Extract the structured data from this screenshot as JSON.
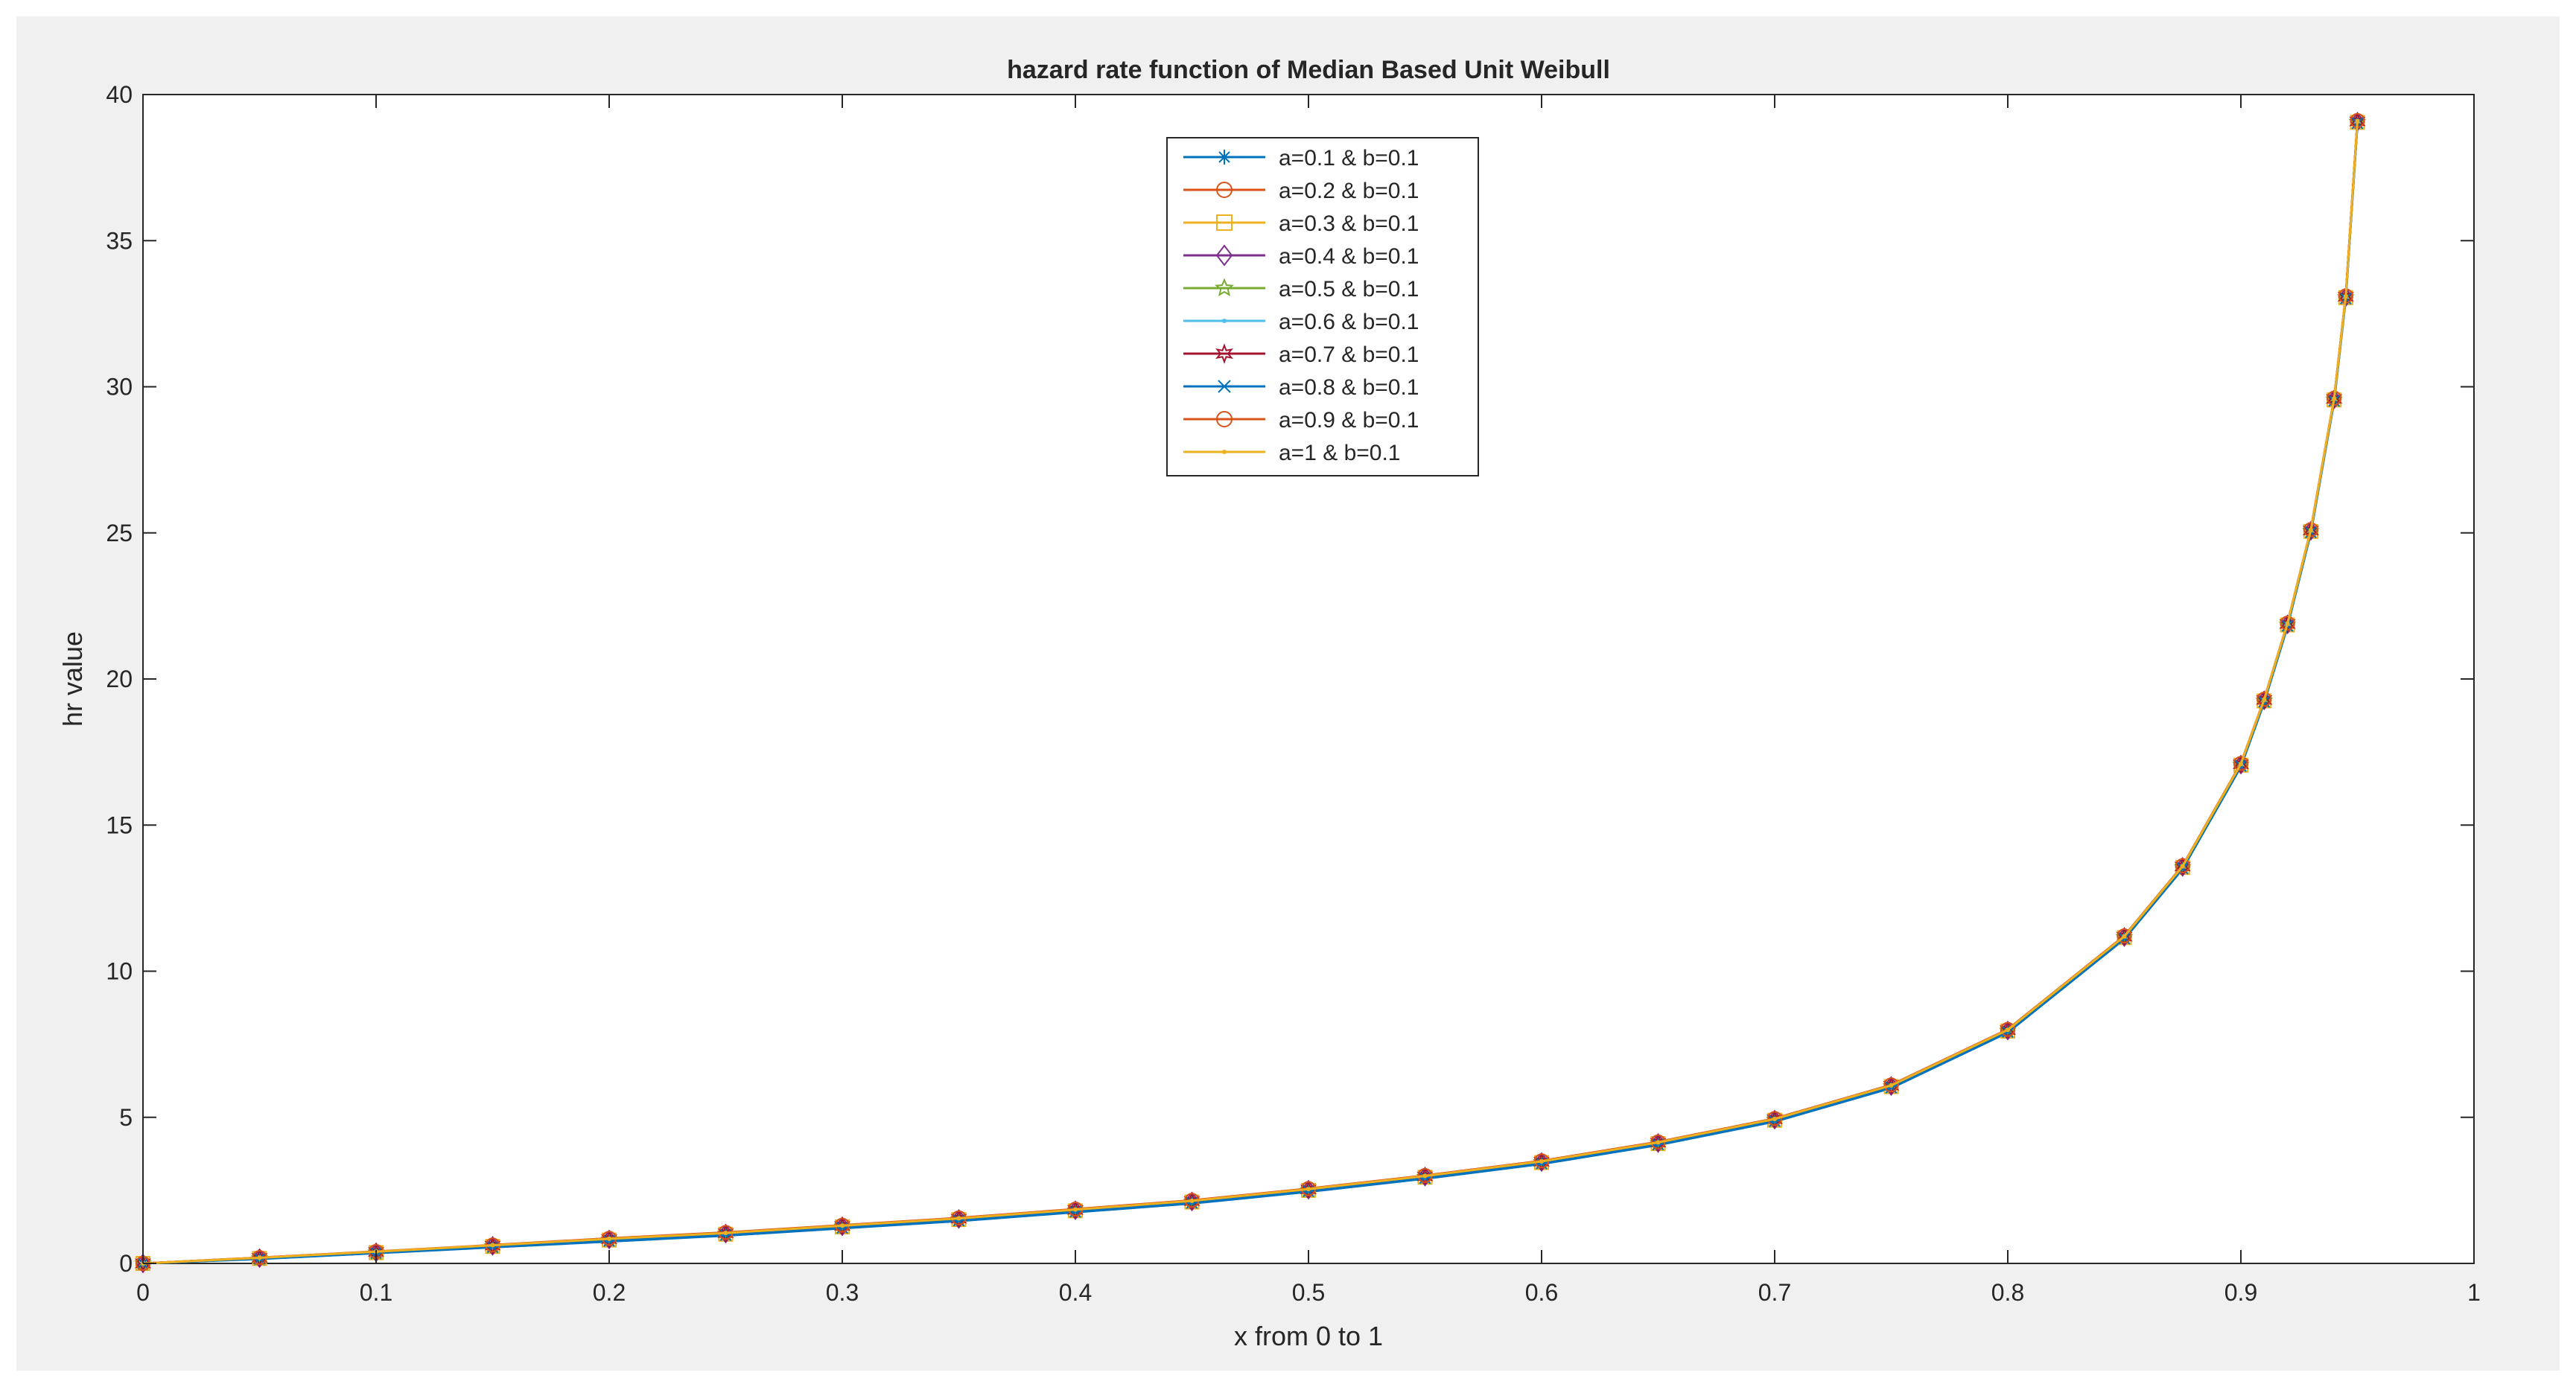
{
  "chart_data": {
    "type": "line",
    "title": "hazard rate function of Median Based  Unit  Weibull",
    "xlabel": "x from 0 to 1",
    "ylabel": "hr value",
    "xlim": [
      0,
      1
    ],
    "ylim": [
      0,
      40
    ],
    "xticks": [
      0,
      0.1,
      0.2,
      0.3,
      0.4,
      0.5,
      0.6,
      0.7,
      0.8,
      0.9,
      1
    ],
    "yticks": [
      0,
      5,
      10,
      15,
      20,
      25,
      30,
      35,
      40
    ],
    "xtick_labels": [
      "0",
      "0.1",
      "0.2",
      "0.3",
      "0.4",
      "0.5",
      "0.6",
      "0.7",
      "0.8",
      "0.9",
      "1"
    ],
    "ytick_labels": [
      "0",
      "5",
      "10",
      "15",
      "20",
      "25",
      "30",
      "35",
      "40"
    ],
    "grid": false,
    "legend_position": "top-center",
    "x": [
      0,
      0.05,
      0.1,
      0.15,
      0.2,
      0.25,
      0.3,
      0.35,
      0.4,
      0.45,
      0.5,
      0.55,
      0.6,
      0.65,
      0.7,
      0.75,
      0.8,
      0.85,
      0.875,
      0.9,
      0.91,
      0.92,
      0.93,
      0.94,
      0.945,
      0.95
    ],
    "series": [
      {
        "name": "a=0.1   &  b=0.1",
        "color": "#0072bd",
        "marker": "asterisk",
        "values": [
          0,
          0.15,
          0.35,
          0.55,
          0.75,
          0.95,
          1.2,
          1.45,
          1.75,
          2.05,
          2.45,
          2.9,
          3.4,
          4.05,
          4.85,
          6.0,
          7.9,
          11.1,
          13.5,
          17.0,
          19.2,
          21.8,
          25.0,
          29.5,
          33.0,
          39.0
        ]
      },
      {
        "name": "a=0.2  &  b=0.1",
        "color": "#d95319",
        "marker": "circle",
        "values": [
          0,
          0.2,
          0.4,
          0.62,
          0.85,
          1.05,
          1.3,
          1.55,
          1.85,
          2.15,
          2.55,
          3.0,
          3.5,
          4.15,
          4.95,
          6.1,
          8.0,
          11.2,
          13.6,
          17.1,
          19.3,
          21.9,
          25.1,
          29.6,
          33.1,
          39.1
        ]
      },
      {
        "name": "a=0.3  &  b=0.1",
        "color": "#edb120",
        "marker": "square",
        "values": [
          0,
          0.17,
          0.37,
          0.58,
          0.8,
          1.0,
          1.25,
          1.5,
          1.8,
          2.1,
          2.5,
          2.95,
          3.45,
          4.1,
          4.9,
          6.05,
          7.95,
          11.15,
          13.55,
          17.05,
          19.25,
          21.85,
          25.05,
          29.55,
          33.05,
          39.05
        ]
      },
      {
        "name": "a=0.4   &  b=0.1",
        "color": "#7e2f8e",
        "marker": "diamond",
        "values": [
          0,
          0.18,
          0.38,
          0.6,
          0.82,
          1.02,
          1.27,
          1.52,
          1.82,
          2.12,
          2.52,
          2.97,
          3.47,
          4.12,
          4.92,
          6.07,
          7.97,
          11.17,
          13.57,
          17.07,
          19.27,
          21.87,
          25.07,
          29.57,
          33.07,
          39.07
        ]
      },
      {
        "name": "a=0.5  &  b=0.1",
        "color": "#77ac30",
        "marker": "pentagram",
        "values": [
          0,
          0.17,
          0.37,
          0.59,
          0.81,
          1.01,
          1.26,
          1.51,
          1.81,
          2.11,
          2.51,
          2.96,
          3.46,
          4.11,
          4.91,
          6.06,
          7.96,
          11.16,
          13.56,
          17.06,
          19.26,
          21.86,
          25.06,
          29.56,
          33.06,
          39.06
        ]
      },
      {
        "name": "a=0.6  &  b=0.1",
        "color": "#4dbeee",
        "marker": "point",
        "values": [
          0,
          0.16,
          0.36,
          0.57,
          0.79,
          0.99,
          1.24,
          1.49,
          1.79,
          2.09,
          2.49,
          2.94,
          3.44,
          4.09,
          4.89,
          6.04,
          7.94,
          11.14,
          13.54,
          17.04,
          19.24,
          21.84,
          25.04,
          29.54,
          33.04,
          39.04
        ]
      },
      {
        "name": "a=0.7   &  b=0.1",
        "color": "#a2142f",
        "marker": "hexagram",
        "values": [
          0,
          0.19,
          0.39,
          0.61,
          0.83,
          1.03,
          1.28,
          1.53,
          1.83,
          2.13,
          2.53,
          2.98,
          3.48,
          4.13,
          4.93,
          6.08,
          7.98,
          11.18,
          13.58,
          17.08,
          19.28,
          21.88,
          25.08,
          29.58,
          33.08,
          39.08
        ]
      },
      {
        "name": "a=0.8   &  b=0.1",
        "color": "#0072bd",
        "marker": "cross",
        "values": [
          0,
          0.16,
          0.36,
          0.56,
          0.77,
          0.97,
          1.22,
          1.47,
          1.77,
          2.07,
          2.47,
          2.92,
          3.42,
          4.07,
          4.87,
          6.02,
          7.92,
          11.12,
          13.52,
          17.02,
          19.22,
          21.82,
          25.02,
          29.52,
          33.02,
          39.02
        ]
      },
      {
        "name": "a=0.9   &  b=0.1",
        "color": "#d95319",
        "marker": "circle",
        "values": [
          0,
          0.2,
          0.41,
          0.63,
          0.86,
          1.06,
          1.31,
          1.56,
          1.86,
          2.16,
          2.56,
          3.01,
          3.51,
          4.16,
          4.96,
          6.11,
          8.01,
          11.21,
          13.61,
          17.11,
          19.31,
          21.91,
          25.11,
          29.61,
          33.11,
          39.11
        ]
      },
      {
        "name": "a=1 & b=0.1",
        "color": "#edb120",
        "marker": "point",
        "values": [
          0,
          0.19,
          0.4,
          0.62,
          0.84,
          1.04,
          1.29,
          1.54,
          1.84,
          2.14,
          2.54,
          2.99,
          3.49,
          4.14,
          4.94,
          6.09,
          7.99,
          11.19,
          13.59,
          17.09,
          19.29,
          21.89,
          25.09,
          29.59,
          33.09,
          39.09
        ]
      }
    ]
  }
}
